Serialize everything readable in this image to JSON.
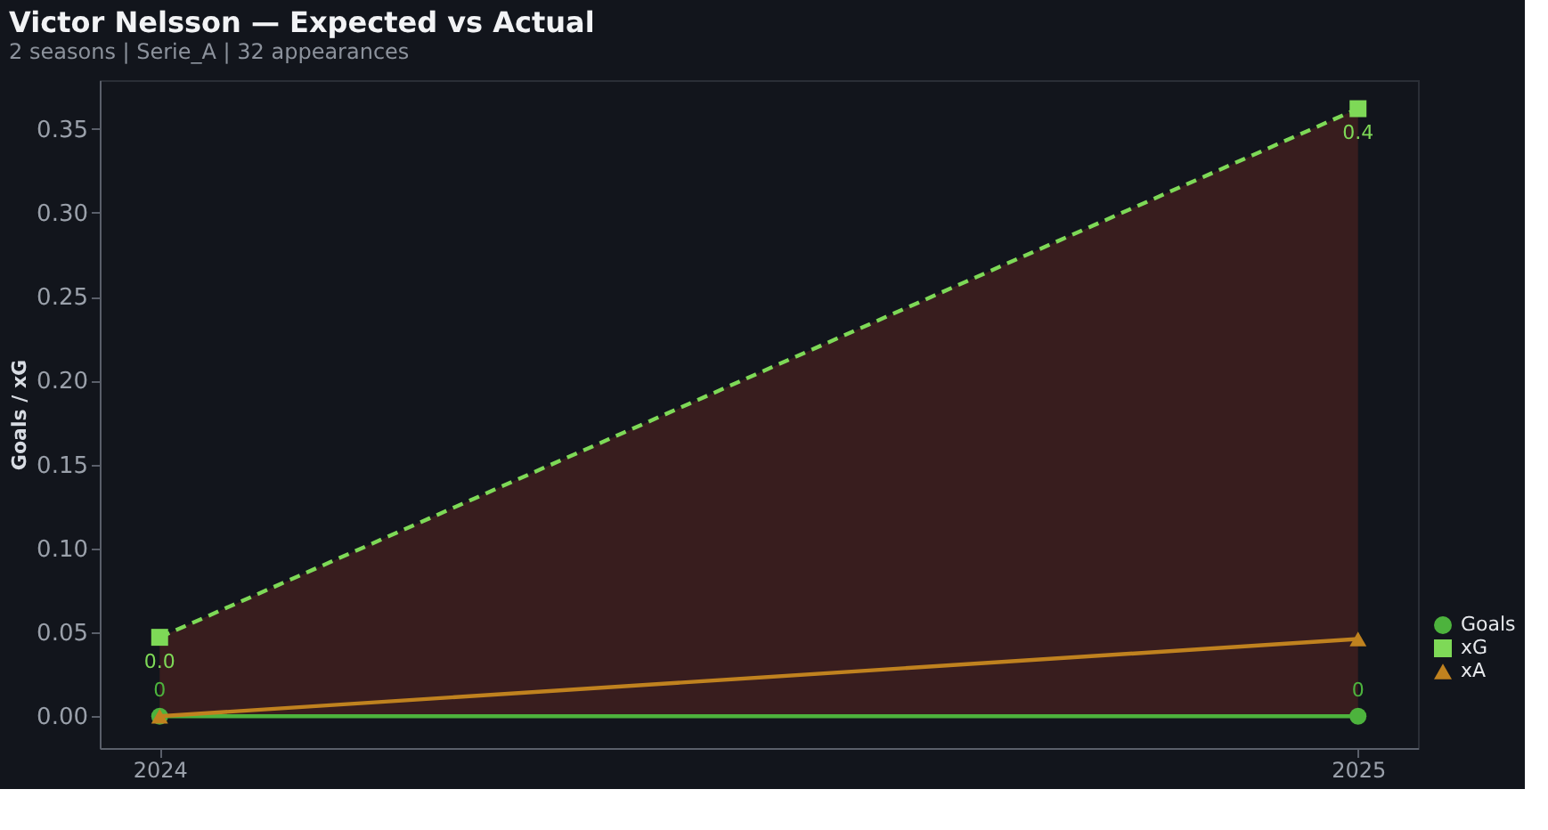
{
  "chart_data": {
    "type": "line",
    "title": "Victor Nelsson — Expected vs Actual",
    "subtitle": "2 seasons | Serie_A | 32 appearances",
    "ylabel": "Goals / xG",
    "categories": [
      "2024",
      "2025"
    ],
    "series": [
      {
        "name": "Goals",
        "color": "#4db33d",
        "values": [
          0,
          0
        ],
        "marker": "circle",
        "line_style": "solid",
        "value_labels": [
          "0",
          "0"
        ]
      },
      {
        "name": "xG",
        "color": "#7ed957",
        "values": [
          0.047,
          0.362
        ],
        "marker": "square",
        "line_style": "dashed",
        "value_labels": [
          "0.0",
          "0.4"
        ],
        "lower": [
          0,
          0
        ],
        "upper": [
          0.047,
          0.362
        ]
      },
      {
        "name": "xA",
        "color": "#c0821f",
        "values": [
          0,
          0.046
        ],
        "marker": "triangle",
        "line_style": "solid"
      }
    ],
    "ylim": [
      -0.019,
      0.379
    ],
    "yticks": [
      {
        "value": 0,
        "label": "0.00"
      },
      {
        "value": 0.05,
        "label": "0.05"
      },
      {
        "value": 0.1,
        "label": "0.10"
      },
      {
        "value": 0.15,
        "label": "0.15"
      },
      {
        "value": 0.2,
        "label": "0.20"
      },
      {
        "value": 0.25,
        "label": "0.25"
      },
      {
        "value": 0.3,
        "label": "0.30"
      },
      {
        "value": 0.35,
        "label": "0.35"
      }
    ],
    "grid": false,
    "legend": "bottom right"
  }
}
